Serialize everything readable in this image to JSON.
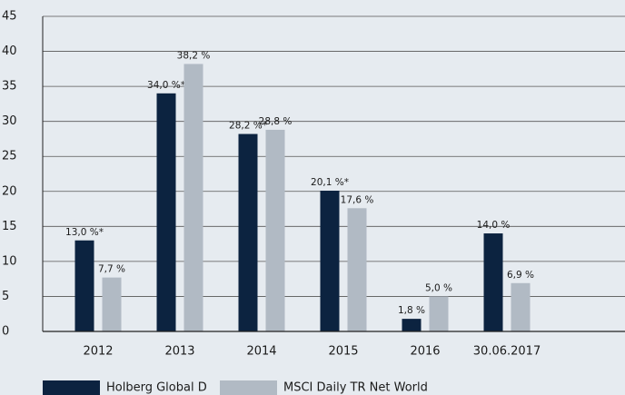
{
  "chart_data": {
    "type": "bar",
    "categories": [
      "2012",
      "2013",
      "2014",
      "2015",
      "2016",
      "30.06.2017"
    ],
    "series": [
      {
        "name": "Holberg Global D",
        "color": "#0c2340",
        "values": [
          13.0,
          34.0,
          28.2,
          20.1,
          1.8,
          14.0
        ],
        "value_labels": [
          "13,0 %*",
          "34,0 %*",
          "28,2 %*",
          "20,1 %*",
          "1,8 %",
          "14,0 %"
        ]
      },
      {
        "name": "MSCI Daily TR Net World",
        "color": "#b1bac4",
        "values": [
          7.7,
          38.2,
          28.8,
          17.6,
          5.0,
          6.9
        ],
        "value_labels": [
          "7,7 %",
          "38,2 %",
          "28,8 %",
          "17,6 %",
          "5,0 %",
          "6,9 %"
        ]
      }
    ],
    "ylim": [
      0,
      45
    ],
    "yticks": [
      0,
      5,
      10,
      15,
      20,
      25,
      30,
      35,
      40,
      45
    ],
    "grid": true,
    "legend": "bottom"
  }
}
